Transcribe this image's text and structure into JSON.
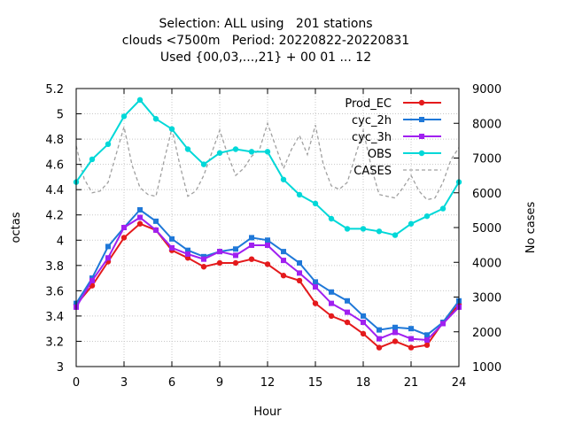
{
  "title_lines": [
    "Selection: ALL using   201 stations",
    "clouds <7500m   Period: 20220822-20220831",
    "Used {00,03,...,21} + 00 01 ... 12"
  ],
  "chart_data": {
    "type": "line",
    "xlabel": "Hour",
    "ylabel": "octas",
    "y2label": "No cases",
    "xlim": [
      0,
      24
    ],
    "ylim": [
      3,
      5.2
    ],
    "y2lim": [
      1000,
      9000
    ],
    "xticks": [
      0,
      3,
      6,
      9,
      12,
      15,
      18,
      21,
      24
    ],
    "yticks": [
      3,
      3.2,
      3.4,
      3.6,
      3.8,
      4,
      4.2,
      4.4,
      4.6,
      4.8,
      5,
      5.2
    ],
    "y2ticks": [
      1000,
      2000,
      3000,
      4000,
      5000,
      6000,
      7000,
      8000,
      9000
    ],
    "grid": true,
    "legend_position": "top-right",
    "x": [
      0,
      1,
      2,
      3,
      4,
      5,
      6,
      7,
      8,
      9,
      10,
      11,
      12,
      13,
      14,
      15,
      16,
      17,
      18,
      19,
      20,
      21,
      22,
      23,
      24
    ],
    "series": [
      {
        "name": "Prod_EC",
        "color": "#e41a1c",
        "marker": "circle",
        "values": [
          3.49,
          3.64,
          3.83,
          4.02,
          4.13,
          4.08,
          3.92,
          3.86,
          3.79,
          3.82,
          3.82,
          3.85,
          3.81,
          3.72,
          3.68,
          3.5,
          3.4,
          3.35,
          3.26,
          3.15,
          3.2,
          3.15,
          3.17,
          3.35,
          3.49
        ]
      },
      {
        "name": "cyc_2h",
        "color": "#1f78d8",
        "marker": "square",
        "values": [
          3.5,
          3.7,
          3.95,
          4.1,
          4.24,
          4.15,
          4.01,
          3.92,
          3.87,
          3.91,
          3.93,
          4.02,
          4.0,
          3.91,
          3.82,
          3.67,
          3.59,
          3.52,
          3.4,
          3.29,
          3.31,
          3.3,
          3.25,
          3.35,
          3.52
        ]
      },
      {
        "name": "cyc_3h",
        "color": "#a020f0",
        "marker": "square",
        "values": [
          3.47,
          3.68,
          3.86,
          4.1,
          4.18,
          4.08,
          3.94,
          3.89,
          3.85,
          3.91,
          3.88,
          3.96,
          3.96,
          3.84,
          3.74,
          3.63,
          3.5,
          3.43,
          3.35,
          3.22,
          3.27,
          3.22,
          3.21,
          3.34,
          3.47
        ]
      },
      {
        "name": "OBS",
        "color": "#00d8d8",
        "marker": "circle",
        "values": [
          4.46,
          4.64,
          4.76,
          4.98,
          5.11,
          4.96,
          4.88,
          4.72,
          4.6,
          4.69,
          4.72,
          4.7,
          4.7,
          4.48,
          4.36,
          4.29,
          4.17,
          4.09,
          4.09,
          4.07,
          4.04,
          4.13,
          4.19,
          4.25,
          4.46
        ]
      },
      {
        "name": "CASES",
        "color": "#a0a0a0",
        "marker": "none",
        "dashed": true,
        "axis": "y2",
        "x": [
          0,
          0.5,
          1,
          1.5,
          2,
          2.5,
          3,
          3.5,
          4,
          4.5,
          5,
          5.5,
          6,
          6.5,
          7,
          7.5,
          8,
          8.5,
          9,
          9.5,
          10,
          10.5,
          11,
          11.5,
          12,
          12.5,
          13,
          13.5,
          14,
          14.5,
          15,
          15.5,
          16,
          16.5,
          17,
          17.5,
          18,
          18.5,
          19,
          19.5,
          20,
          20.5,
          21,
          21.5,
          22,
          22.5,
          23,
          23.5,
          24
        ],
        "values": [
          7350,
          6400,
          6000,
          6050,
          6300,
          7100,
          7900,
          6800,
          6150,
          5950,
          5900,
          6900,
          7850,
          6800,
          5900,
          6050,
          6500,
          7150,
          7800,
          7100,
          6500,
          6700,
          7050,
          7250,
          8000,
          7350,
          6700,
          7250,
          7650,
          7100,
          7950,
          6800,
          6200,
          6100,
          6300,
          7050,
          7800,
          6750,
          5950,
          5900,
          5850,
          6150,
          6500,
          6050,
          5800,
          5850,
          6300,
          6950,
          7300
        ]
      }
    ]
  }
}
